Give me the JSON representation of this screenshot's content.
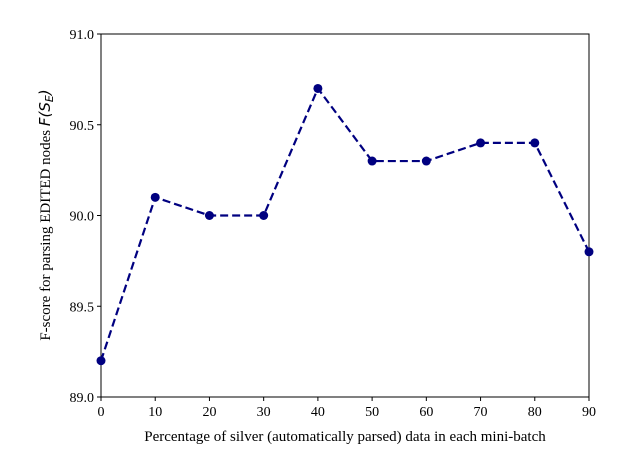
{
  "chart_data": {
    "type": "line",
    "xlabel": "Percentage of silver (automatically parsed) data in each mini-batch",
    "ylabel": "F-score for parsing EDITED nodes F(S_E)",
    "ylabel_parts": {
      "text": "F-score for parsing EDITED nodes ",
      "math_prefix": "F(S",
      "math_sub": "E",
      "math_suffix": ")"
    },
    "xlim": [
      0,
      90
    ],
    "ylim": [
      89.0,
      91.0
    ],
    "x_ticks": [
      "0",
      "10",
      "20",
      "30",
      "40",
      "50",
      "60",
      "70",
      "80",
      "90"
    ],
    "y_ticks": [
      "89.0",
      "89.5",
      "90.0",
      "90.5",
      "91.0"
    ],
    "grid": false,
    "series": [
      {
        "color": "#000080",
        "line_style": "dashed",
        "marker": "circle",
        "points": [
          {
            "x": 0,
            "y": 89.2
          },
          {
            "x": 10,
            "y": 90.1
          },
          {
            "x": 20,
            "y": 90.0
          },
          {
            "x": 30,
            "y": 90.0
          },
          {
            "x": 40,
            "y": 90.7
          },
          {
            "x": 50,
            "y": 90.3
          },
          {
            "x": 60,
            "y": 90.3
          },
          {
            "x": 70,
            "y": 90.4
          },
          {
            "x": 80,
            "y": 90.4
          },
          {
            "x": 90,
            "y": 89.8
          }
        ]
      }
    ]
  }
}
